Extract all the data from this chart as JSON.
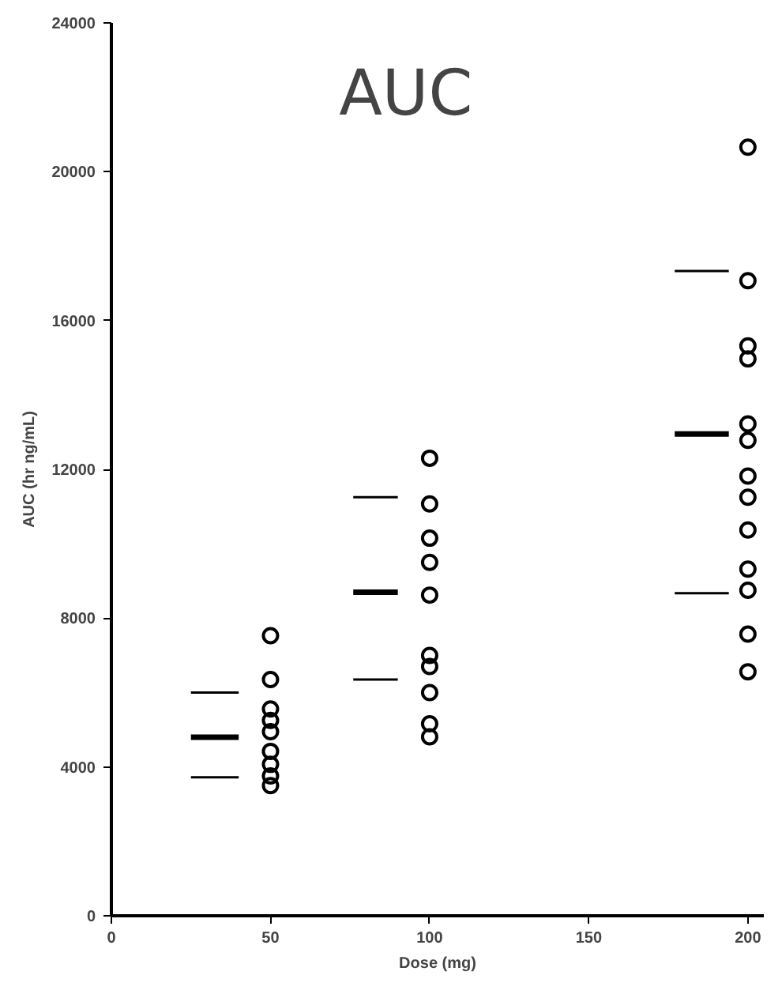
{
  "chart_data": {
    "type": "scatter",
    "title": "AUC",
    "xlabel": "Dose (mg)",
    "ylabel": "AUC (hr ng/mL)",
    "xlim": [
      0,
      205
    ],
    "ylim": [
      0,
      24000
    ],
    "xticks": [
      0,
      50,
      100,
      150,
      200
    ],
    "yticks": [
      0,
      4000,
      8000,
      12000,
      16000,
      20000,
      24000
    ],
    "grid": false,
    "marker": "circle",
    "series": [
      {
        "color": "#000000",
        "x": [
          50,
          50,
          50,
          50,
          50,
          50,
          50,
          50,
          50
        ],
        "values": [
          7530,
          6350,
          5560,
          5250,
          4950,
          4420,
          4070,
          3760,
          3500
        ]
      },
      {
        "color": "#000000",
        "x": [
          100,
          100,
          100,
          100,
          100,
          100,
          100,
          100,
          100,
          100
        ],
        "values": [
          12300,
          11070,
          10150,
          9500,
          8620,
          7000,
          6700,
          6000,
          5160,
          4810
        ]
      },
      {
        "color": "#000000",
        "x": [
          200,
          200,
          200,
          200,
          200,
          200,
          200,
          200,
          200,
          200,
          200,
          200,
          200
        ],
        "values": [
          20660,
          17070,
          15320,
          14970,
          13220,
          12780,
          11820,
          11250,
          10370,
          9320,
          8750,
          7570,
          6560
        ]
      },
      {
        "type": "line",
        "color": "#000000",
        "x": [
          25,
          40,
          null,
          76,
          90,
          null,
          177,
          194
        ],
        "marker": "none",
        "values": [
          4800,
          4800,
          null,
          8700,
          8700,
          null,
          12950,
          12950
        ]
      },
      {
        "type": "line",
        "color": "#000000",
        "x": [
          25,
          40,
          null,
          76,
          90,
          null,
          177,
          194
        ],
        "marker": "none",
        "values": [
          6000,
          6000,
          null,
          11250,
          11250,
          null,
          17330,
          17330
        ]
      },
      {
        "type": "line",
        "color": "#000000",
        "x": [
          25,
          40,
          null,
          76,
          90,
          null,
          177,
          194
        ],
        "marker": "none",
        "values": [
          3720,
          3720,
          null,
          6350,
          6350,
          null,
          8670,
          8670
        ]
      }
    ]
  }
}
